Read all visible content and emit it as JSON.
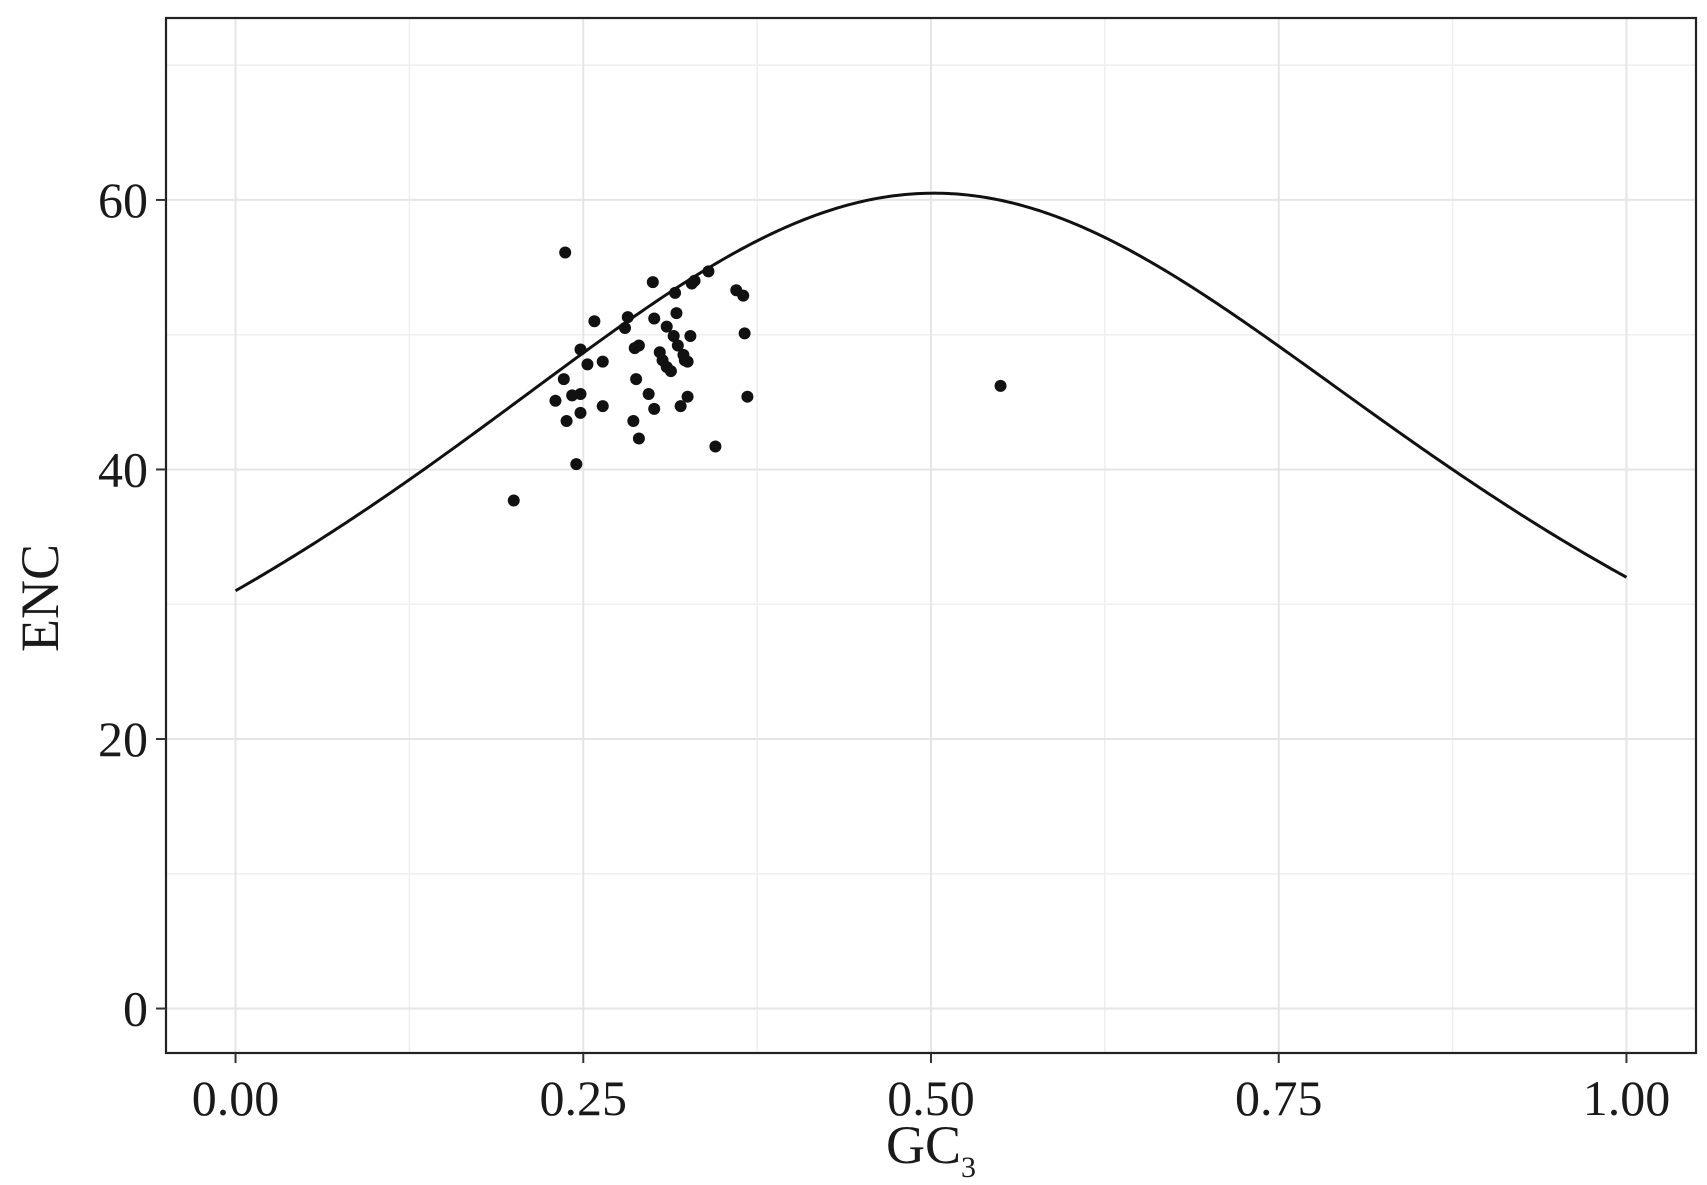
{
  "chart_data": {
    "type": "scatter",
    "xlabel": "GC",
    "xlabel_subscript": "3",
    "ylabel": "ENC",
    "xlim": [
      -0.05,
      1.05
    ],
    "ylim": [
      -3.3,
      73.5
    ],
    "x_ticks": [
      0.0,
      0.25,
      0.5,
      0.75,
      1.0
    ],
    "x_tick_labels": [
      "0.00",
      "0.25",
      "0.50",
      "0.75",
      "1.00"
    ],
    "y_ticks": [
      0,
      20,
      40,
      60
    ],
    "y_tick_labels": [
      "0",
      "20",
      "40",
      "60"
    ],
    "grid": true,
    "series": [
      {
        "kind": "points",
        "points": [
          [
            0.237,
            56.1
          ],
          [
            0.2,
            37.7
          ],
          [
            0.23,
            45.1
          ],
          [
            0.236,
            46.7
          ],
          [
            0.238,
            43.6
          ],
          [
            0.242,
            45.5
          ],
          [
            0.245,
            40.4
          ],
          [
            0.248,
            44.2
          ],
          [
            0.248,
            45.6
          ],
          [
            0.248,
            48.9
          ],
          [
            0.253,
            47.8
          ],
          [
            0.258,
            51.0
          ],
          [
            0.264,
            48.0
          ],
          [
            0.264,
            44.7
          ],
          [
            0.282,
            51.3
          ],
          [
            0.28,
            50.5
          ],
          [
            0.286,
            43.6
          ],
          [
            0.287,
            49.0
          ],
          [
            0.288,
            46.7
          ],
          [
            0.29,
            42.3
          ],
          [
            0.29,
            49.2
          ],
          [
            0.297,
            45.6
          ],
          [
            0.3,
            53.9
          ],
          [
            0.301,
            51.2
          ],
          [
            0.301,
            44.5
          ],
          [
            0.305,
            48.7
          ],
          [
            0.307,
            48.1
          ],
          [
            0.31,
            47.6
          ],
          [
            0.31,
            50.6
          ],
          [
            0.313,
            47.3
          ],
          [
            0.315,
            49.9
          ],
          [
            0.316,
            53.1
          ],
          [
            0.317,
            51.6
          ],
          [
            0.318,
            49.2
          ],
          [
            0.32,
            44.7
          ],
          [
            0.322,
            48.5
          ],
          [
            0.323,
            48.1
          ],
          [
            0.325,
            48.0
          ],
          [
            0.325,
            45.4
          ],
          [
            0.327,
            49.9
          ],
          [
            0.328,
            53.8
          ],
          [
            0.33,
            54.0
          ],
          [
            0.345,
            41.7
          ],
          [
            0.34,
            54.7
          ],
          [
            0.36,
            53.3
          ],
          [
            0.365,
            52.9
          ],
          [
            0.366,
            50.1
          ],
          [
            0.368,
            45.4
          ],
          [
            0.55,
            46.2
          ]
        ]
      },
      {
        "kind": "expected-curve",
        "formula": "2 + s + 29 / (s^2 + (1 - s)^2)",
        "x_range": [
          0.0,
          1.0
        ]
      }
    ]
  }
}
